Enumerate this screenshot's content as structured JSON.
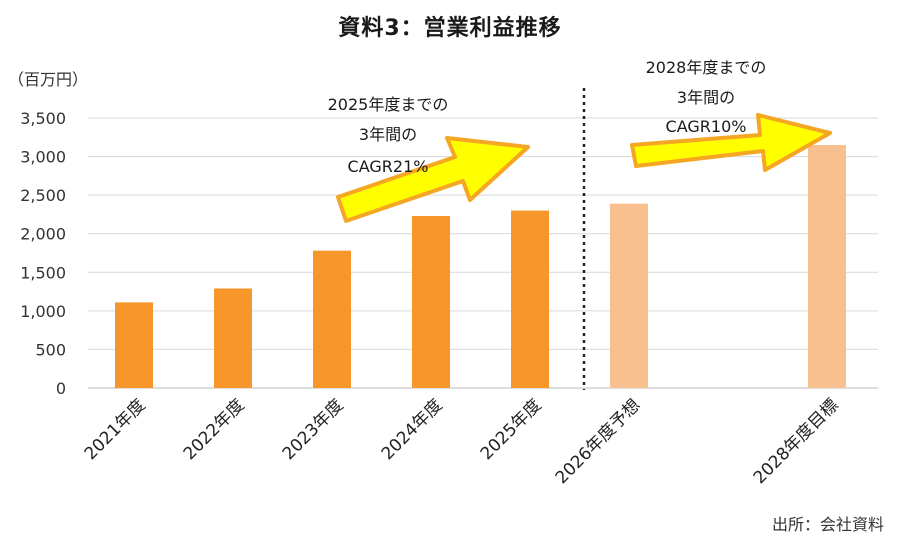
{
  "chart_data": {
    "type": "bar",
    "title": "資料3：営業利益推移",
    "ylabel": "（百万円）",
    "ylim": [
      0,
      3500
    ],
    "yticks": [
      "0",
      "500",
      "1,000",
      "1,500",
      "2,000",
      "2,500",
      "3,000",
      "3,500"
    ],
    "grid": true,
    "categories": [
      "2021年度",
      "2022年度",
      "2023年度",
      "2024年度",
      "2025年度",
      "2026年度予想",
      "",
      "2028年度目標"
    ],
    "values": [
      1110,
      1290,
      1780,
      2230,
      2300,
      2390,
      null,
      3150
    ],
    "colors": [
      "#f7962a",
      "#f7962a",
      "#f7962a",
      "#f7962a",
      "#f7962a",
      "#f9c08f",
      null,
      "#f9c08f"
    ],
    "annotations": [
      {
        "lines": [
          "2025年度までの",
          "3年間の",
          "CAGR21%"
        ]
      },
      {
        "lines": [
          "2028年度までの",
          "3年間の",
          "CAGR10%"
        ]
      }
    ],
    "arrow_fill": "#ffff00",
    "arrow_stroke": "#f5a623"
  },
  "source": "出所：会社資料"
}
